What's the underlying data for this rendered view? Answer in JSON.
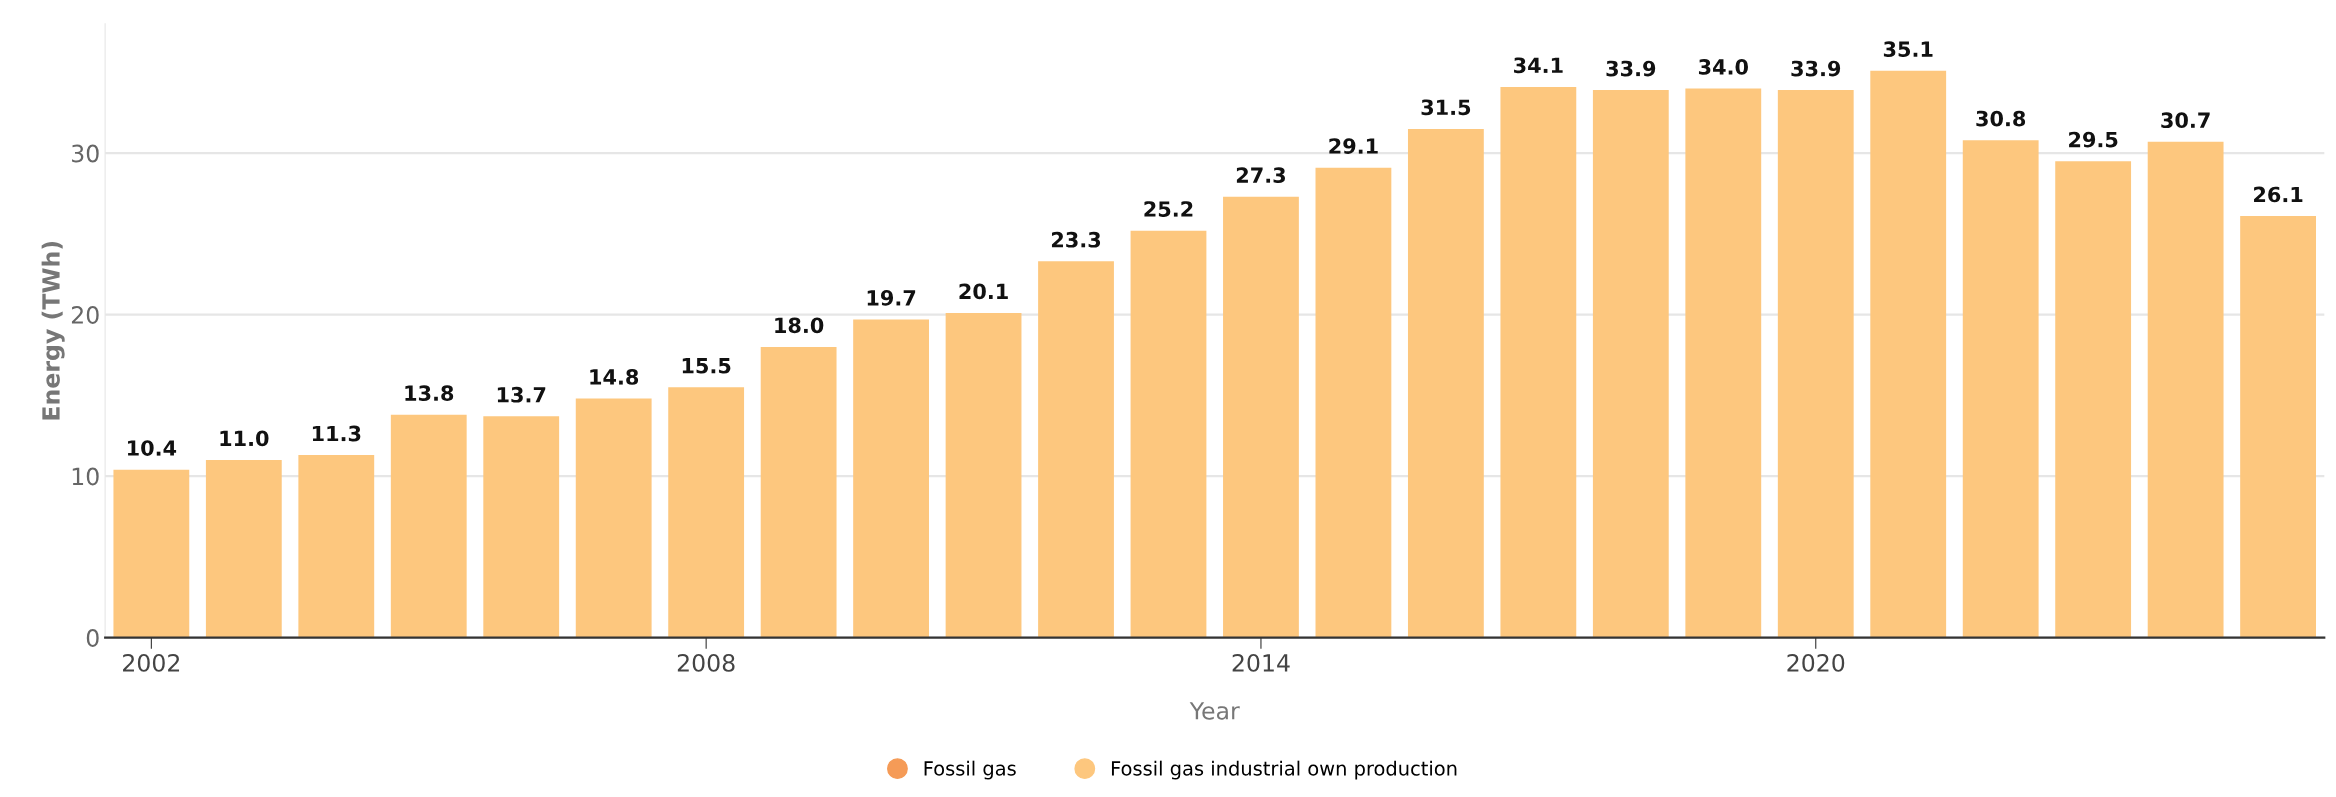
{
  "chart_data": {
    "type": "bar",
    "xlabel": "Year",
    "ylabel": "Energy (TWh)",
    "x": [
      2002,
      2003,
      2004,
      2005,
      2006,
      2007,
      2008,
      2009,
      2010,
      2011,
      2012,
      2013,
      2014,
      2015,
      2016,
      2017,
      2018,
      2019,
      2020,
      2021,
      2022,
      2023,
      2024,
      2025
    ],
    "series": [
      {
        "name": "Fossil gas",
        "color": "#f59b57",
        "values": [
          null,
          null,
          null,
          null,
          null,
          null,
          null,
          null,
          null,
          null,
          null,
          null,
          null,
          null,
          null,
          null,
          null,
          null,
          null,
          null,
          null,
          null,
          null,
          null
        ]
      },
      {
        "name": "Fossil gas industrial own production",
        "color": "#fdc77e",
        "values": [
          10.4,
          11.0,
          11.3,
          13.8,
          13.7,
          14.8,
          15.5,
          18.0,
          19.7,
          20.1,
          23.3,
          25.2,
          27.3,
          29.1,
          31.5,
          34.1,
          33.9,
          34.0,
          33.9,
          35.1,
          30.8,
          29.5,
          30.7,
          26.1
        ]
      }
    ],
    "value_labels": [
      "10.4",
      "11.0",
      "11.3",
      "13.8",
      "13.7",
      "14.8",
      "15.5",
      "18.0",
      "19.7",
      "20.1",
      "23.3",
      "25.2",
      "27.3",
      "29.1",
      "31.5",
      "34.1",
      "33.9",
      "34.0",
      "33.9",
      "35.1",
      "30.8",
      "29.5",
      "30.7",
      "26.1"
    ],
    "xlim": [
      2001.5,
      2025.5
    ],
    "xticks": [
      2002,
      2008,
      2014,
      2020
    ],
    "ylim": [
      0,
      38
    ],
    "yticks": [
      0,
      10,
      20,
      30
    ],
    "grid": "y",
    "legend": "bottom",
    "marker": "circle"
  }
}
